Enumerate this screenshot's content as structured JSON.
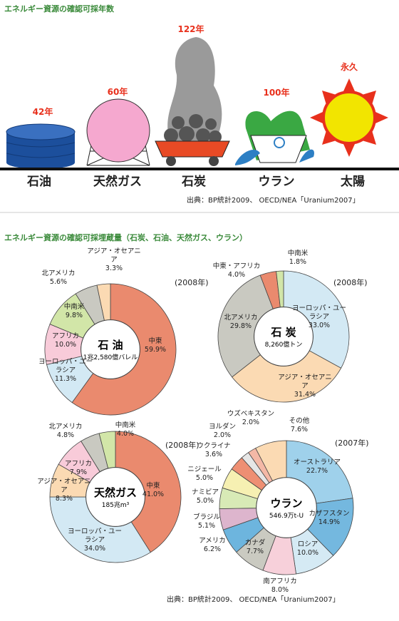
{
  "reserves": {
    "title": "エネルギー資源の確認可採年数",
    "items": [
      {
        "name": "石油",
        "years": "42年"
      },
      {
        "name": "天然ガス",
        "years": "60年"
      },
      {
        "name": "石炭",
        "years": "122年"
      },
      {
        "name": "ウラン",
        "years": "100年"
      },
      {
        "name": "太陽",
        "years": "永久"
      }
    ],
    "source": "出典：BP統計2009、 OECD/NEA「Uranium2007」"
  },
  "reserves_section": {
    "title": "エネルギー資源の確認可採埋蔵量（石炭、石油、天然ガス、ウラン）",
    "source": "出典：BP統計2009、 OECD/NEA「Uranium2007」"
  },
  "chart_data": [
    {
      "type": "pie",
      "donut": true,
      "center_label": "石 油",
      "center_sub": "1兆2,580億バレル",
      "year": "(2008年)",
      "categories": [
        "中東",
        "ヨーロッパ・ユーラシア",
        "アフリカ",
        "中南米",
        "北アメリカ",
        "アジア・オセアニア"
      ],
      "values": [
        59.9,
        11.3,
        10.0,
        9.8,
        5.6,
        3.3
      ],
      "value_labels": [
        "59.9%",
        "11.3%",
        "10.0%",
        "9.8%",
        "5.6%",
        "3.3%"
      ],
      "colors": [
        "#ea8a6e",
        "#d3e9f4",
        "#f8cbd9",
        "#d2e6a8",
        "#c9c9c1",
        "#fbdab3"
      ]
    },
    {
      "type": "pie",
      "donut": true,
      "center_label": "石 炭",
      "center_sub": "8,260億トン",
      "year": "(2008年)",
      "categories": [
        "ヨーロッパ・ユーラシア",
        "アジア・オセアニア",
        "北アメリカ",
        "中東・アフリカ",
        "中南米"
      ],
      "values": [
        33.0,
        31.4,
        29.8,
        4.0,
        1.8
      ],
      "value_labels": [
        "33.0%",
        "31.4%",
        "29.8%",
        "4.0%",
        "1.8%"
      ],
      "colors": [
        "#d3e9f4",
        "#fbdab3",
        "#c9c9c1",
        "#ea8a6e",
        "#d2e6a8"
      ]
    },
    {
      "type": "pie",
      "donut": true,
      "center_label": "天然ガス",
      "center_sub": "185兆m³",
      "year": "(2008年)",
      "categories": [
        "中東",
        "ヨーロッパ・ユーラシア",
        "アジア・オセアニア",
        "アフリカ",
        "北アメリカ",
        "中南米"
      ],
      "values": [
        41.0,
        34.0,
        8.3,
        7.9,
        4.8,
        4.0
      ],
      "value_labels": [
        "41.0%",
        "34.0%",
        "8.3%",
        "7.9%",
        "4.8%",
        "4.0%"
      ],
      "colors": [
        "#ea8a6e",
        "#d3e9f4",
        "#fbdab3",
        "#f8cbd9",
        "#c9c9c1",
        "#d2e6a8"
      ]
    },
    {
      "type": "pie",
      "donut": true,
      "center_label": "ウラン",
      "center_sub": "546.9万t-U",
      "year": "(2007年)",
      "categories": [
        "オーストラリア",
        "カザフスタン",
        "ロシア",
        "南アフリカ",
        "カナダ",
        "アメリカ",
        "ブラジル",
        "ナミビア",
        "ニジェール",
        "ウクライナ",
        "ヨルダン",
        "ウズベキスタン",
        "その他"
      ],
      "values": [
        22.7,
        14.9,
        10.0,
        8.0,
        7.7,
        6.2,
        5.1,
        5.0,
        5.0,
        3.6,
        2.0,
        2.0,
        7.6
      ],
      "value_labels": [
        "22.7%",
        "14.9%",
        "10.0%",
        "8.0%",
        "7.7%",
        "6.2%",
        "5.1%",
        "5.0%",
        "5.0%",
        "3.6%",
        "2.0%",
        "2.0%",
        "7.6%"
      ],
      "colors": [
        "#9fd1eb",
        "#74b8df",
        "#d5eaf4",
        "#f7d0da",
        "#cacac1",
        "#6db5de",
        "#ddb5cd",
        "#d8eab6",
        "#f6f0b2",
        "#ee8f73",
        "#e6e6e6",
        "#f4b8a6",
        "#fbdab3"
      ]
    }
  ]
}
